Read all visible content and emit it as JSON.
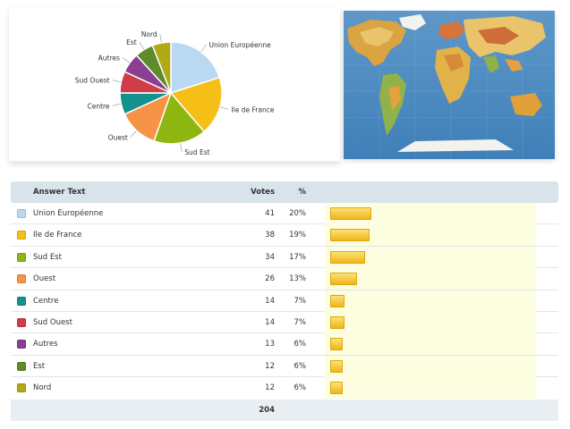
{
  "chart_data": [
    {
      "type": "pie",
      "categories": [
        "Union Européenne",
        "Ile de France",
        "Sud Est",
        "Ouest",
        "Centre",
        "Sud Ouest",
        "Autres",
        "Est",
        "Nord"
      ],
      "values": [
        41,
        38,
        34,
        26,
        14,
        14,
        13,
        12,
        12
      ],
      "colors": [
        "#b9d9f3",
        "#f6bf18",
        "#8db70f",
        "#f79346",
        "#14928e",
        "#cf3e48",
        "#8a3f90",
        "#5e8c2b",
        "#b0aa17"
      ]
    },
    {
      "type": "table",
      "columns": [
        "Answer Text",
        "Votes",
        "%"
      ],
      "rows": [
        {
          "label": "Union Européenne",
          "votes": 41,
          "percent": "20%",
          "share": 0.2,
          "color": "#b9d9f3"
        },
        {
          "label": "Ile de France",
          "votes": 38,
          "percent": "19%",
          "share": 0.19,
          "color": "#f6bf18"
        },
        {
          "label": "Sud Est",
          "votes": 34,
          "percent": "17%",
          "share": 0.17,
          "color": "#8db70f"
        },
        {
          "label": "Ouest",
          "votes": 26,
          "percent": "13%",
          "share": 0.13,
          "color": "#f79346"
        },
        {
          "label": "Centre",
          "votes": 14,
          "percent": "7%",
          "share": 0.07,
          "color": "#14928e"
        },
        {
          "label": "Sud Ouest",
          "votes": 14,
          "percent": "7%",
          "share": 0.07,
          "color": "#cf3e48"
        },
        {
          "label": "Autres",
          "votes": 13,
          "percent": "6%",
          "share": 0.06,
          "color": "#8a3f90"
        },
        {
          "label": "Est",
          "votes": 12,
          "percent": "6%",
          "share": 0.06,
          "color": "#5e8c2b"
        },
        {
          "label": "Nord",
          "votes": 12,
          "percent": "6%",
          "share": 0.06,
          "color": "#b0aa17"
        }
      ],
      "total": 204
    }
  ],
  "map": {
    "icon": "world-map-image"
  }
}
